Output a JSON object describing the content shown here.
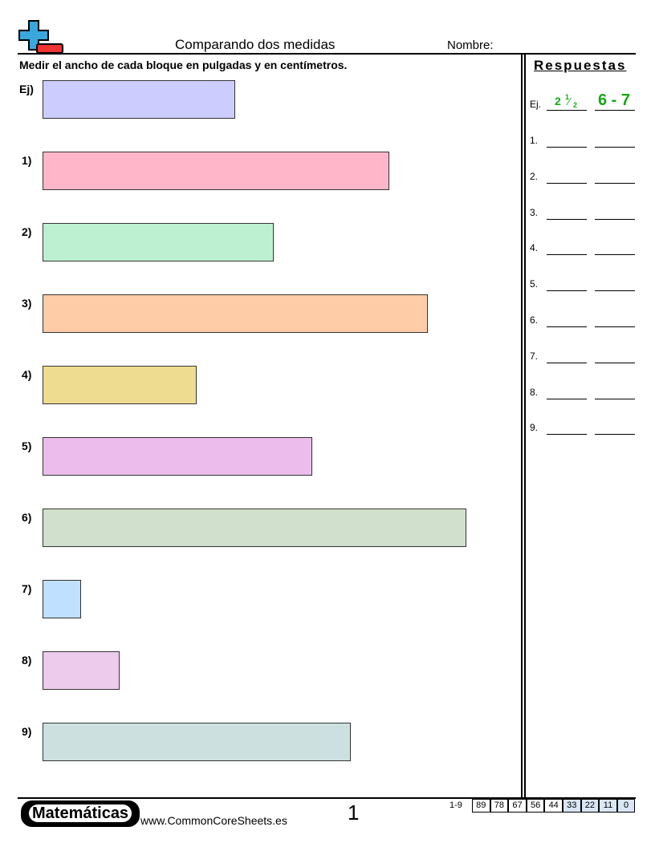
{
  "header": {
    "title": "Comparando dos medidas",
    "name_label": "Nombre:"
  },
  "instructions": "Medir el ancho de cada bloque en pulgadas y en centímetros.",
  "problems": [
    {
      "label": "Ej)"
    },
    {
      "label": "1)"
    },
    {
      "label": "2)"
    },
    {
      "label": "3)"
    },
    {
      "label": "4)"
    },
    {
      "label": "5)"
    },
    {
      "label": "6)"
    },
    {
      "label": "7)"
    },
    {
      "label": "8)"
    },
    {
      "label": "9)"
    }
  ],
  "answers": {
    "title": "Respuestas",
    "example": {
      "label": "Ej.",
      "inches_whole": "2",
      "inches_numerator": "1",
      "inches_denominator": "2",
      "centimeters": "6 - 7"
    },
    "rows": [
      "1.",
      "2.",
      "3.",
      "4.",
      "5.",
      "6.",
      "7.",
      "8.",
      "9."
    ]
  },
  "footer": {
    "brand": "Matemáticas",
    "website": "www.CommonCoreSheets.es",
    "page_number": "1",
    "score_range": "1-9",
    "scores": [
      "89",
      "78",
      "67",
      "56",
      "44",
      "33",
      "22",
      "11",
      "0"
    ]
  }
}
